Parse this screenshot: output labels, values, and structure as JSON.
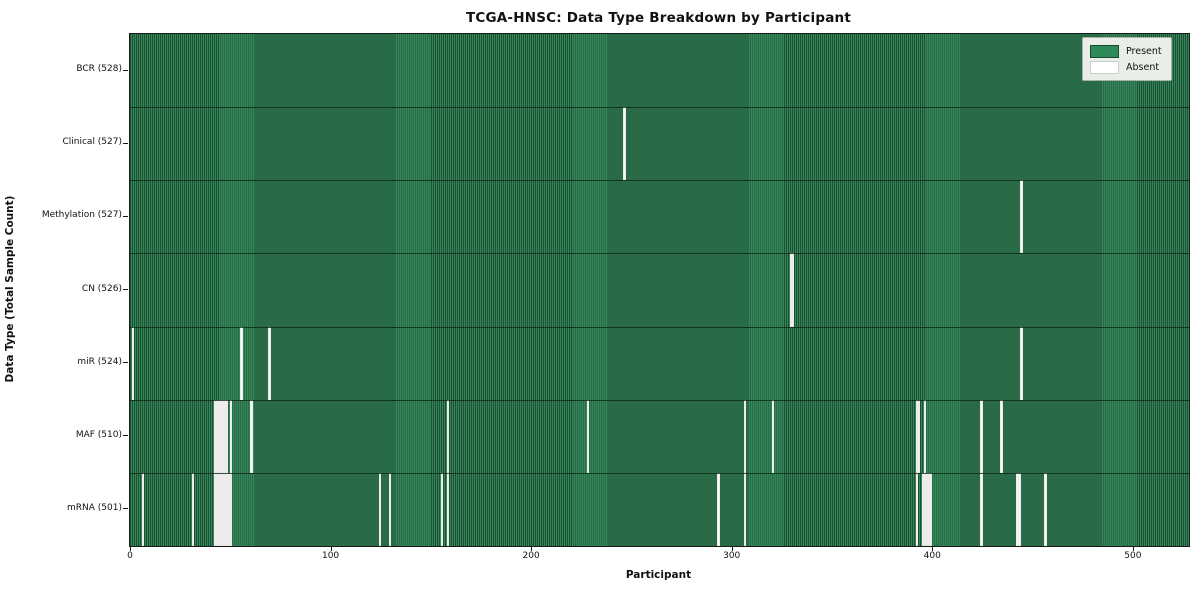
{
  "title": "TCGA-HNSC: Data Type Breakdown by Participant",
  "legend": {
    "present_label": "Present",
    "absent_label": "Absent"
  },
  "colors": {
    "present": "#2e8b57",
    "present_stripe_light": "#35875a",
    "present_stripe_dark": "#1d4f33",
    "absent": "#f8f8f8"
  },
  "chart_data": {
    "type": "heatmap",
    "title": "TCGA-HNSC: Data Type Breakdown by Participant",
    "xlabel": "Participant",
    "ylabel": "Data Type (Total Sample Count)",
    "n_participants": 528,
    "x_ticks": [
      0,
      100,
      200,
      300,
      400,
      500
    ],
    "legend_position": "upper right",
    "value_encoding": {
      "present": "green",
      "absent": "white"
    },
    "rows": [
      {
        "label": "BCR (528)",
        "name": "BCR",
        "total": 528,
        "absent_participants": []
      },
      {
        "label": "Clinical (527)",
        "name": "Clinical",
        "total": 527,
        "absent_participants": [
          246
        ]
      },
      {
        "label": "Methylation (527)",
        "name": "Methylation",
        "total": 527,
        "absent_participants": [
          444
        ]
      },
      {
        "label": "CN (526)",
        "name": "CN",
        "total": 526,
        "absent_participants": [
          329,
          330
        ]
      },
      {
        "label": "miR (524)",
        "name": "miR",
        "total": 524,
        "absent_participants": [
          1,
          55,
          69,
          444
        ]
      },
      {
        "label": "MAF (510)",
        "name": "MAF",
        "total": 510,
        "absent_participants": [
          42,
          43,
          44,
          45,
          46,
          47,
          48,
          50,
          60,
          158,
          228,
          306,
          320,
          392,
          393,
          396,
          424,
          434
        ]
      },
      {
        "label": "mRNA (501)",
        "name": "mRNA",
        "total": 501,
        "absent_participants": [
          6,
          31,
          42,
          43,
          44,
          45,
          46,
          47,
          48,
          49,
          50,
          124,
          129,
          155,
          158,
          293,
          306,
          392,
          395,
          396,
          397,
          398,
          399,
          424,
          442,
          443,
          456
        ]
      }
    ]
  }
}
